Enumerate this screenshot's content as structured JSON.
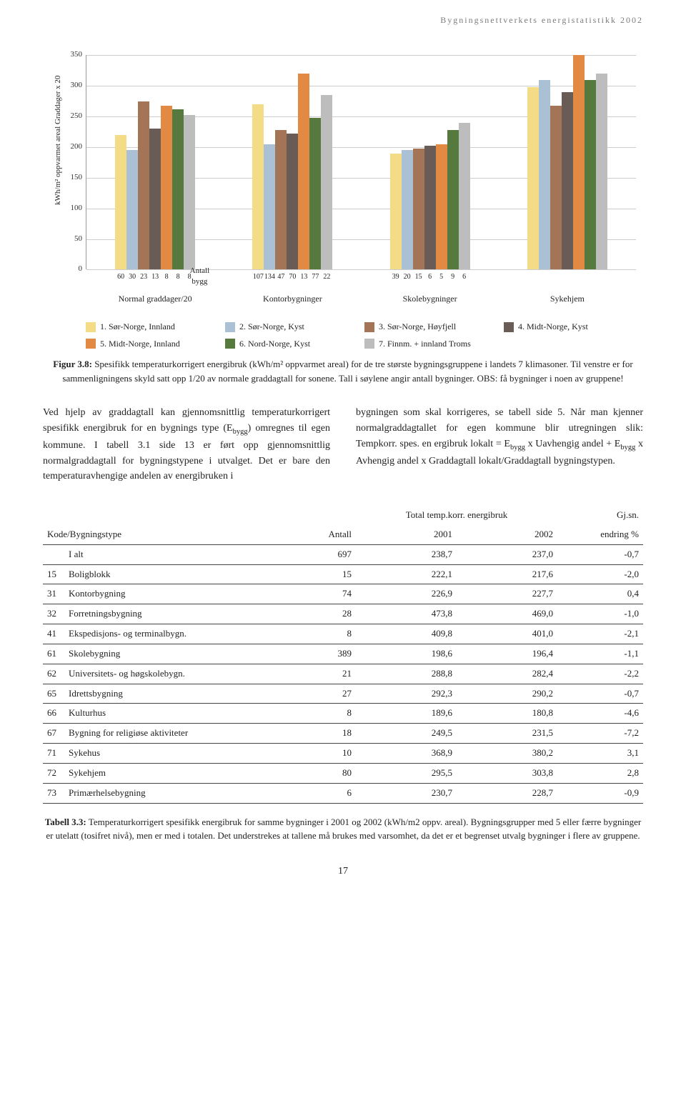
{
  "header_text": "Bygningsnettverkets energistatistikk 2002",
  "chart": {
    "type": "bar",
    "y_axis_label": "kWh/m² oppvarmet areal\nGraddager x 20",
    "ylim": [
      0,
      350
    ],
    "ytick_step": 50,
    "yticks": [
      0,
      50,
      100,
      150,
      200,
      250,
      300,
      350
    ],
    "background_color": "#ffffff",
    "grid_color": "#cccccc",
    "antall_label": "Antall bygg",
    "series": [
      {
        "name": "1. Sør-Norge, Innland",
        "color": "#f3dc85"
      },
      {
        "name": "2. Sør-Norge, Kyst",
        "color": "#a9c0d5"
      },
      {
        "name": "3. Sør-Norge, Høyfjell",
        "color": "#a37455"
      },
      {
        "name": "4. Midt-Norge, Kyst",
        "color": "#695c57"
      },
      {
        "name": "5. Midt-Norge, Innland",
        "color": "#e28a43"
      },
      {
        "name": "6. Nord-Norge, Kyst",
        "color": "#567a3d"
      },
      {
        "name": "7. Finnm. + innland Troms",
        "color": "#bdbdbd"
      }
    ],
    "groups": [
      {
        "label": "Normal graddager/20",
        "values": [
          220,
          195,
          275,
          230,
          268,
          262,
          252
        ],
        "counts": [
          "60",
          "30",
          "23",
          "13",
          "8",
          "8",
          "8"
        ]
      },
      {
        "label": "Kontorbygninger",
        "values": [
          270,
          205,
          228,
          222,
          320,
          248,
          285
        ],
        "counts": [
          "107",
          "134",
          "47",
          "70",
          "13",
          "77",
          "22"
        ]
      },
      {
        "label": "Skolebygninger",
        "values": [
          190,
          195,
          198,
          202,
          205,
          228,
          240
        ],
        "counts": [
          "39",
          "20",
          "15",
          "6",
          "5",
          "9",
          "6"
        ]
      },
      {
        "label": "Sykehjem",
        "values": [
          298,
          310,
          268,
          290,
          350,
          310,
          320
        ],
        "counts": [
          "",
          "",
          "",
          "",
          "",
          "",
          ""
        ]
      }
    ]
  },
  "figure_caption_lead": "Figur 3.8:",
  "figure_caption_body": "Spesifikk temperaturkorrigert energibruk (kWh/m² oppvarmet areal) for de tre største bygningsgruppene i landets 7 klimasoner. Til venstre er for sammenligningens skyld satt opp 1/20 av normale graddagtall for sonene. Tall i søylene angir antall bygninger. OBS: få bygninger i noen av gruppene!",
  "body_left": "Ved hjelp av graddagtall kan gjennomsnittlig temperaturkorrigert spesifikk energibruk for en bygnings type (Ebygg) omregnes til egen kommune. I tabell 3.1 side 13 er ført opp gjennomsnittlig normalgraddagtall for bygningstypene i utvalget. Det er bare den temperaturavhengige andelen av energibruken i",
  "body_right": "bygningen som skal korrigeres, se tabell side 5. Når man kjenner normalgraddagtallet for egen kommune blir utregningen slik: Tempkorr. spes. en ergibruk lokalt = Ebygg x Uavhengig andel + Ebygg x Avhengig andel x Graddagtall lokalt/Graddagtall bygningstypen.",
  "table": {
    "super_header_center": "Total temp.korr. energibruk",
    "super_header_right": "Gj.sn.",
    "columns": [
      "Kode/Bygningstype",
      "Antall",
      "2001",
      "2002",
      "endring %"
    ],
    "rows": [
      [
        "",
        "I alt",
        "697",
        "238,7",
        "237,0",
        "-0,7"
      ],
      [
        "15",
        "Boligblokk",
        "15",
        "222,1",
        "217,6",
        "-2,0"
      ],
      [
        "31",
        "Kontorbygning",
        "74",
        "226,9",
        "227,7",
        "0,4"
      ],
      [
        "32",
        "Forretningsbygning",
        "28",
        "473,8",
        "469,0",
        "-1,0"
      ],
      [
        "41",
        "Ekspedisjons- og terminalbygn.",
        "8",
        "409,8",
        "401,0",
        "-2,1"
      ],
      [
        "61",
        "Skolebygning",
        "389",
        "198,6",
        "196,4",
        "-1,1"
      ],
      [
        "62",
        "Universitets- og høgskolebygn.",
        "21",
        "288,8",
        "282,4",
        "-2,2"
      ],
      [
        "65",
        "Idrettsbygning",
        "27",
        "292,3",
        "290,2",
        "-0,7"
      ],
      [
        "66",
        "Kulturhus",
        "8",
        "189,6",
        "180,8",
        "-4,6"
      ],
      [
        "67",
        "Bygning for religiøse aktiviteter",
        "18",
        "249,5",
        "231,5",
        "-7,2"
      ],
      [
        "71",
        "Sykehus",
        "10",
        "368,9",
        "380,2",
        "3,1"
      ],
      [
        "72",
        "Sykehjem",
        "80",
        "295,5",
        "303,8",
        "2,8"
      ],
      [
        "73",
        "Primærhelsebygning",
        "6",
        "230,7",
        "228,7",
        "-0,9"
      ]
    ]
  },
  "table_caption_lead": "Tabell 3.3:",
  "table_caption_body": "Temperaturkorrigert spesifikk energibruk for samme bygninger i 2001 og 2002 (kWh/m2 oppv. areal). Bygningsgrupper med 5 eller færre bygninger er utelatt (tosifret nivå), men er med i totalen. Det understrekes at tallene må brukes med varsomhet, da det er et begrenset utvalg bygninger i flere av gruppene.",
  "page_number": "17"
}
